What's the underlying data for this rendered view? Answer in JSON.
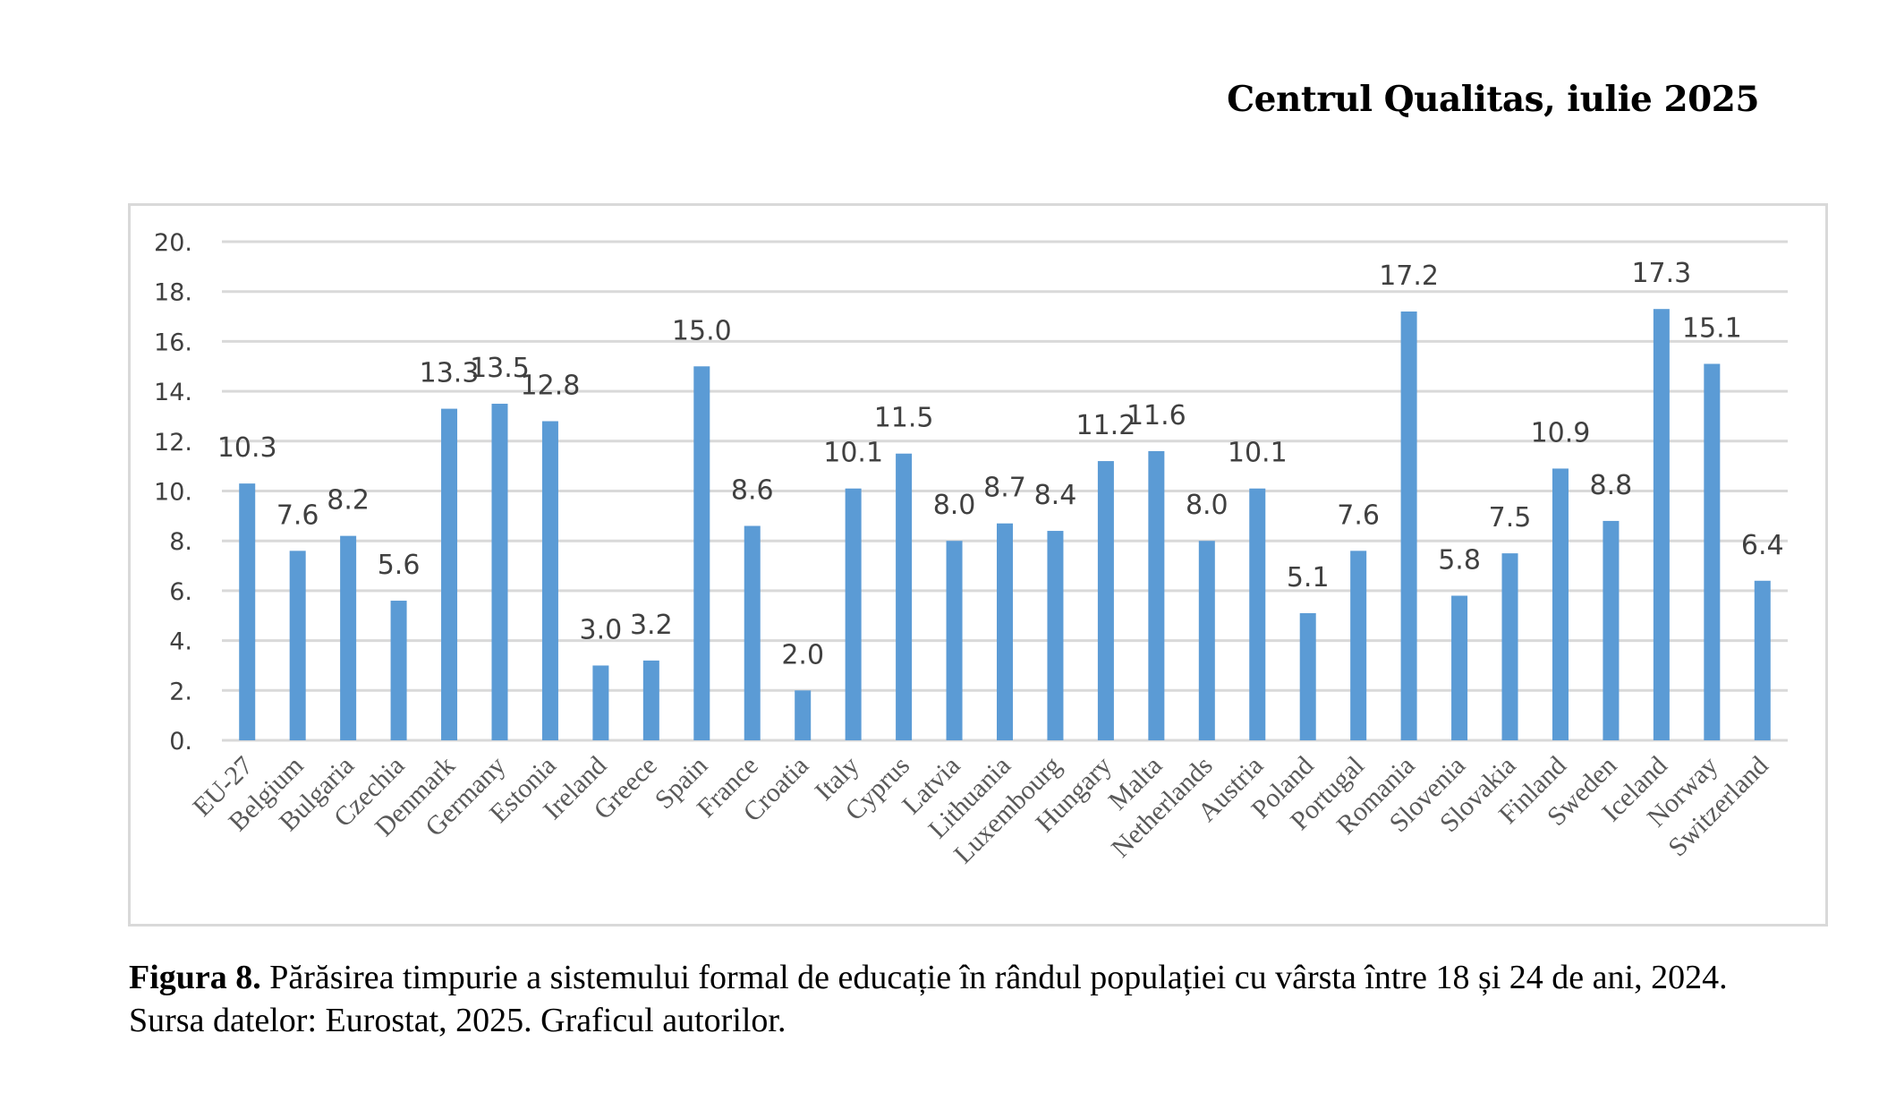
{
  "header": {
    "text": "Centrul Qualitas, iulie 2025"
  },
  "caption": {
    "label": "Figura 8.",
    "text": " Părăsirea timpurie a sistemului formal de educație  în rândul populației cu vârsta între 18 și 24 de ani, 2024. Sursa datelor: Eurostat, 2025. Graficul autorilor."
  },
  "colors": {
    "bar": "#5b9bd5",
    "grid": "#d9d9d9",
    "text": "#404040"
  },
  "chart_data": {
    "type": "bar",
    "title": "",
    "xlabel": "",
    "ylabel": "",
    "ylim": [
      0,
      20
    ],
    "yticks": [
      0,
      2,
      4,
      6,
      8,
      10,
      12,
      14,
      16,
      18,
      20
    ],
    "ytick_labels": [
      "0.",
      "2.",
      "4.",
      "6.",
      "8.",
      "10.",
      "12.",
      "14.",
      "16.",
      "18.",
      "20."
    ],
    "grid": true,
    "legend": "none",
    "categories": [
      "EU-27",
      "Belgium",
      "Bulgaria",
      "Czechia",
      "Denmark",
      "Germany",
      "Estonia",
      "Ireland",
      "Greece",
      "Spain",
      "France",
      "Croatia",
      "Italy",
      "Cyprus",
      "Latvia",
      "Lithuania",
      "Luxembourg",
      "Hungary",
      "Malta",
      "Netherlands",
      "Austria",
      "Poland",
      "Portugal",
      "Romania",
      "Slovenia",
      "Slovakia",
      "Finland",
      "Sweden",
      "Iceland",
      "Norway",
      "Switzerland"
    ],
    "values": [
      10.3,
      7.6,
      8.2,
      5.6,
      13.3,
      13.5,
      12.8,
      3.0,
      3.2,
      15.0,
      8.6,
      2.0,
      10.1,
      11.5,
      8.0,
      8.7,
      8.4,
      11.2,
      11.6,
      8.0,
      10.1,
      5.1,
      7.6,
      17.2,
      5.8,
      7.5,
      10.9,
      8.8,
      17.3,
      15.1,
      6.4
    ],
    "data_labels": [
      "10.3",
      "7.6",
      "8.2",
      "5.6",
      "13.3",
      "13.5",
      "12.8",
      "3.0",
      "3.2",
      "15.0",
      "8.6",
      "2.0",
      "10.1",
      "11.5",
      "8.0",
      "8.7",
      "8.4",
      "11.2",
      "11.6",
      "8.0",
      "10.1",
      "5.1",
      "7.6",
      "17.2",
      "5.8",
      "7.5",
      "10.9",
      "8.8",
      "17.3",
      "15.1",
      "6.4"
    ]
  }
}
